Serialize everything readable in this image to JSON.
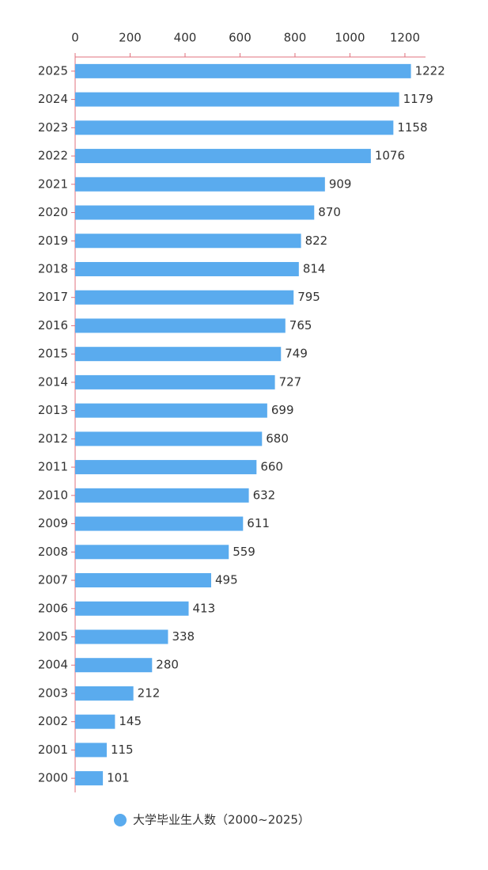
{
  "chart_data": {
    "type": "bar",
    "orientation": "horizontal",
    "categories": [
      "2000",
      "2001",
      "2002",
      "2003",
      "2004",
      "2005",
      "2006",
      "2007",
      "2008",
      "2009",
      "2010",
      "2011",
      "2012",
      "2013",
      "2014",
      "2015",
      "2016",
      "2017",
      "2018",
      "2019",
      "2020",
      "2021",
      "2022",
      "2023",
      "2024",
      "2025"
    ],
    "series": [
      {
        "name": "大学毕业生人数（2000~2025）",
        "color": "#5aabee",
        "values": [
          101,
          115,
          145,
          212,
          280,
          338,
          413,
          495,
          559,
          611,
          632,
          660,
          680,
          699,
          727,
          749,
          765,
          795,
          814,
          822,
          870,
          909,
          1076,
          1158,
          1179,
          1222
        ]
      }
    ],
    "xlim": [
      0,
      1275
    ],
    "xticks": [
      0,
      200,
      400,
      600,
      800,
      1000,
      1200
    ],
    "legend": "bottom"
  }
}
